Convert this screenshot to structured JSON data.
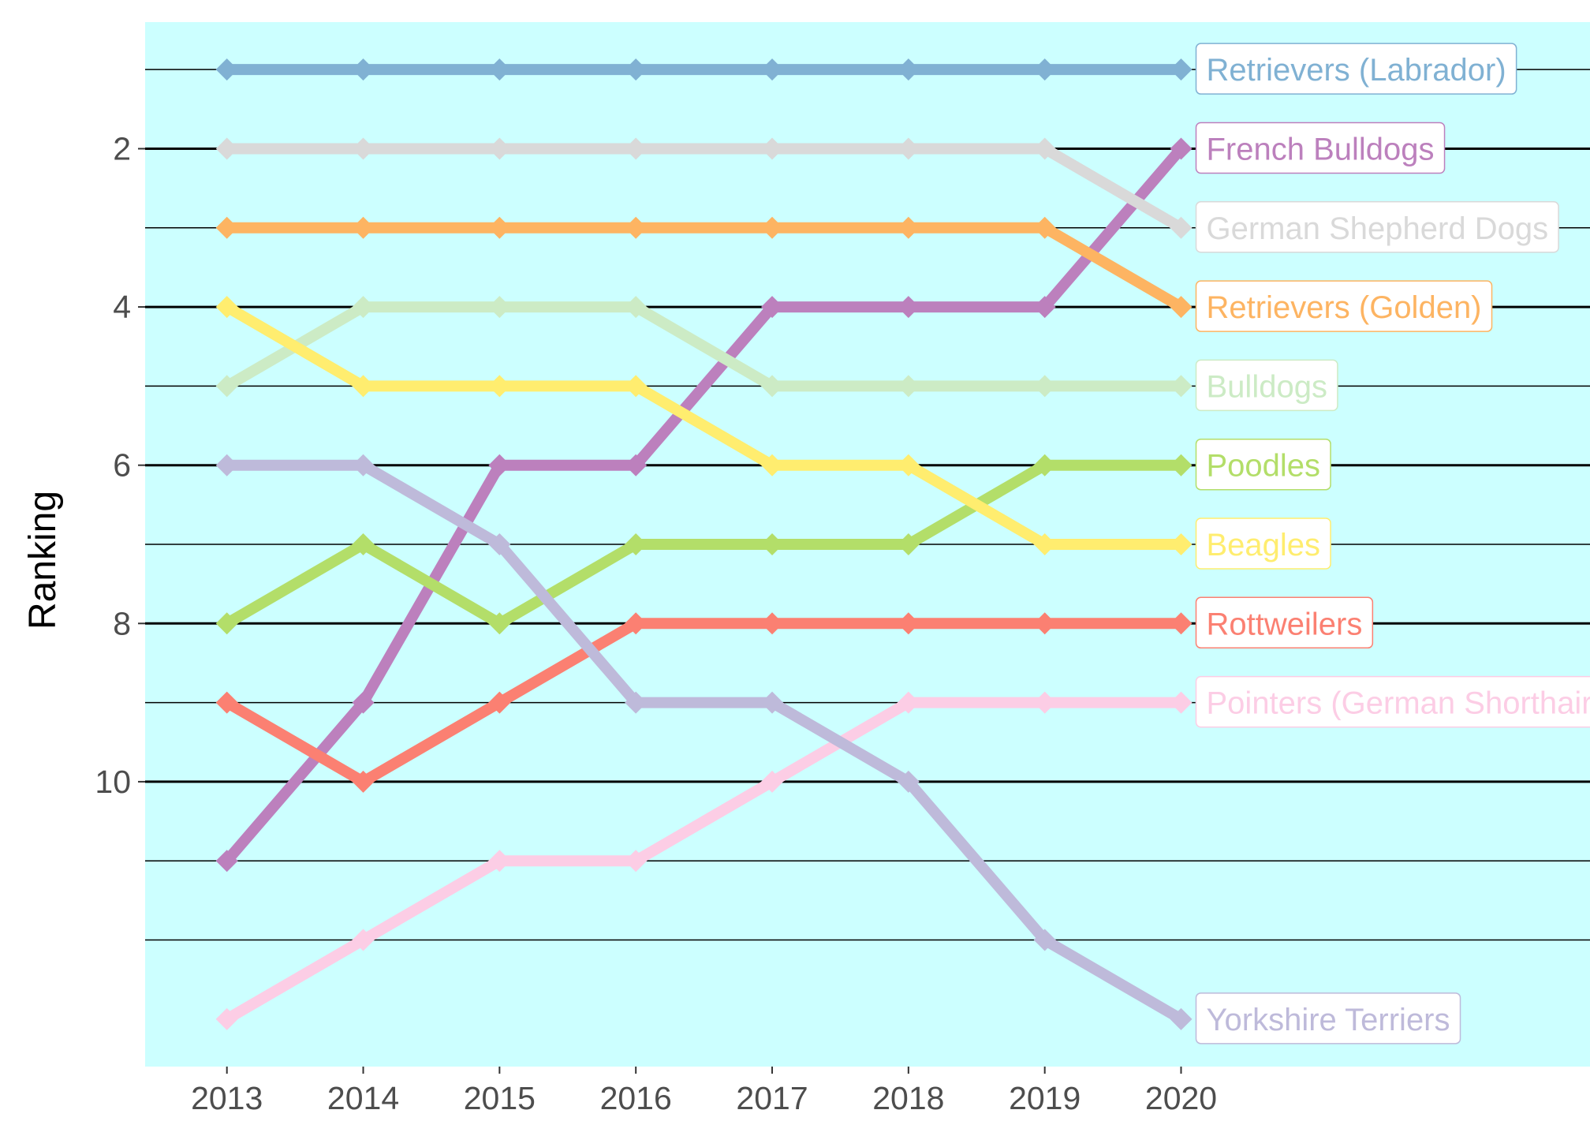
{
  "chart_data": {
    "type": "line",
    "title": "",
    "xlabel": "",
    "ylabel": "Ranking",
    "x": [
      2013,
      2014,
      2015,
      2016,
      2017,
      2018,
      2019,
      2020
    ],
    "xlim": [
      2012.4,
      2023.0
    ],
    "ylim": [
      13.6,
      0.4
    ],
    "y_reversed": true,
    "y_ticks_labeled": [
      2,
      4,
      6,
      8,
      10
    ],
    "y_gridlines": [
      1,
      2,
      3,
      4,
      5,
      6,
      7,
      8,
      9,
      10,
      11,
      12
    ],
    "grid": true,
    "legend": "end-of-line labels",
    "panel_background": "#ccffff",
    "series": [
      {
        "name": "Retrievers (Labrador)",
        "color": "#80b1d3",
        "values": [
          1,
          1,
          1,
          1,
          1,
          1,
          1,
          1
        ]
      },
      {
        "name": "French Bulldogs",
        "color": "#bc80bd",
        "values": [
          11,
          9,
          6,
          6,
          4,
          4,
          4,
          2
        ]
      },
      {
        "name": "German Shepherd Dogs",
        "color": "#d9d9d9",
        "values": [
          2,
          2,
          2,
          2,
          2,
          2,
          2,
          3
        ]
      },
      {
        "name": "Retrievers (Golden)",
        "color": "#fdb462",
        "values": [
          3,
          3,
          3,
          3,
          3,
          3,
          3,
          4
        ]
      },
      {
        "name": "Bulldogs",
        "color": "#ccebc5",
        "values": [
          5,
          4,
          4,
          4,
          5,
          5,
          5,
          5
        ]
      },
      {
        "name": "Poodles",
        "color": "#b3de69",
        "values": [
          8,
          7,
          8,
          7,
          7,
          7,
          6,
          6
        ]
      },
      {
        "name": "Beagles",
        "color": "#ffed6f",
        "values": [
          4,
          5,
          5,
          5,
          6,
          6,
          7,
          7
        ]
      },
      {
        "name": "Rottweilers",
        "color": "#fb8072",
        "values": [
          9,
          10,
          9,
          8,
          8,
          8,
          8,
          8
        ]
      },
      {
        "name": "Pointers (German Shorthaired)",
        "color": "#fccde5",
        "values": [
          13,
          12,
          11,
          11,
          10,
          9,
          9,
          9
        ]
      },
      {
        "name": "Yorkshire Terriers",
        "color": "#bebada",
        "values": [
          6,
          6,
          7,
          9,
          9,
          10,
          12,
          13
        ]
      }
    ]
  }
}
